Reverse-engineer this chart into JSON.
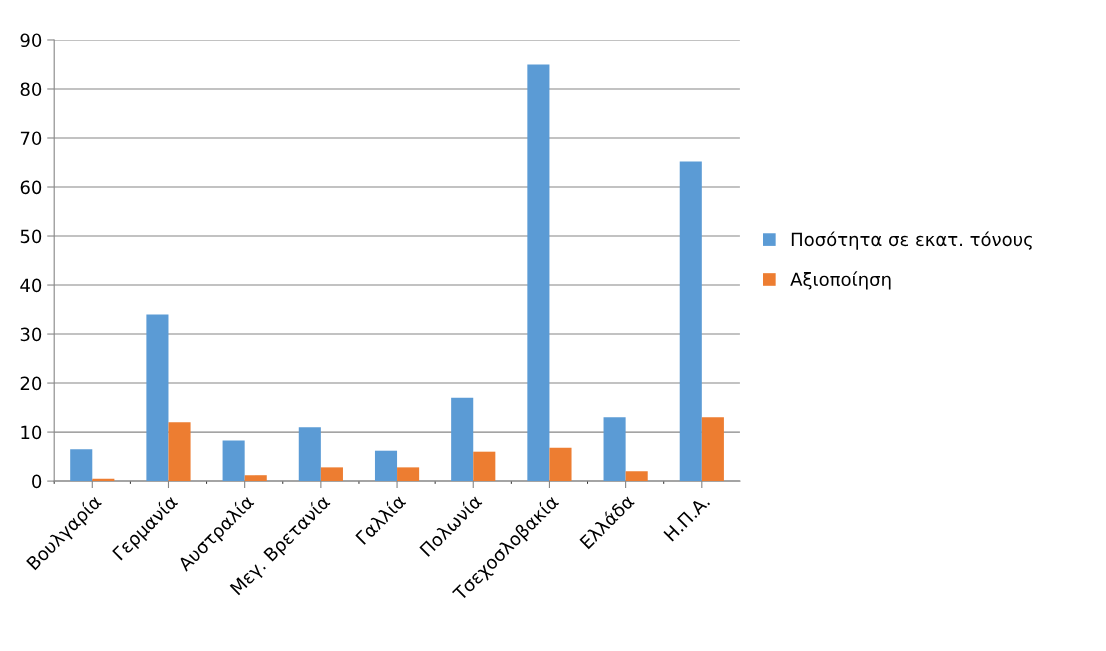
{
  "chart_data": {
    "type": "bar",
    "categories": [
      "Βουλγαρία",
      "Γερμανία",
      "Αυστραλία",
      "Μεγ. Βρετανία",
      "Γαλλία",
      "Πολωνία",
      "Τσεχοσλοβακία",
      "Ελλάδα",
      "Η.Π.Α."
    ],
    "series": [
      {
        "name": "Ποσότητα σε εκατ. τόνους",
        "color": "#5b9bd5",
        "values": [
          6.5,
          34,
          8.3,
          11,
          6.2,
          17,
          85,
          13,
          65.2
        ]
      },
      {
        "name": "Αξιοποίηση",
        "color": "#ed7d31",
        "values": [
          0.5,
          12,
          1.2,
          2.8,
          2.8,
          6,
          6.8,
          2,
          13
        ]
      }
    ],
    "ylim": [
      0,
      90
    ],
    "yticks": [
      0,
      10,
      20,
      30,
      40,
      50,
      60,
      70,
      80,
      90
    ],
    "grid": "y",
    "legend": "right"
  }
}
